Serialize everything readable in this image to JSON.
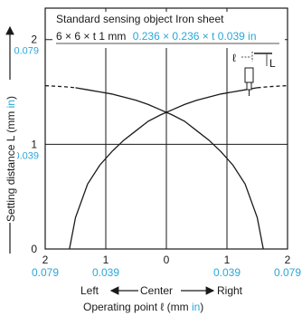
{
  "chart_data": {
    "type": "line",
    "xlabel": "Operating point ℓ (mm in)",
    "xlabel_parts": {
      "main": "Operating point ℓ (mm ",
      "unit_alt": "in",
      "close": ")"
    },
    "ylabel": "Setting distance L (mm in)",
    "ylabel_parts": {
      "main": "Setting distance L (mm ",
      "unit_alt": "in",
      "close": ")"
    },
    "direction_labels": {
      "left": "Left",
      "center": "Center",
      "right": "Right"
    },
    "xlim": [
      -2,
      2
    ],
    "ylim": [
      0,
      2.3
    ],
    "x_ticks": [
      {
        "value": -2,
        "mm": "2",
        "in": "0.079"
      },
      {
        "value": -1,
        "mm": "1",
        "in": "0.039"
      },
      {
        "value": 0,
        "mm": "0",
        "in": ""
      },
      {
        "value": 1,
        "mm": "1",
        "in": "0.039"
      },
      {
        "value": 2,
        "mm": "2",
        "in": "0.079"
      }
    ],
    "y_ticks": [
      {
        "value": 0,
        "mm": "0",
        "in": ""
      },
      {
        "value": 1,
        "mm": "1",
        "in": "0.039"
      },
      {
        "value": 2,
        "mm": "2",
        "in": "0.079"
      }
    ],
    "grid": true,
    "annotation": {
      "line1": "Standard sensing object Iron sheet",
      "line2_mm": "6 × 6 × t 1 mm",
      "line2_in": "0.236 × 0.236 × t 0.039 in",
      "diagram_l": "ℓ",
      "diagram_L": "L"
    },
    "series": [
      {
        "x": [
          -1.6,
          -1.5,
          -1.3,
          -1.1,
          -0.9,
          -0.7,
          -0.5,
          -0.3,
          -0.1,
          0.1,
          0.3,
          0.5,
          0.7,
          0.9,
          1.1,
          1.3,
          1.5,
          1.7,
          2.0
        ],
        "y": [
          0.0,
          0.3,
          0.62,
          0.8,
          0.93,
          1.04,
          1.13,
          1.22,
          1.28,
          1.33,
          1.38,
          1.42,
          1.45,
          1.48,
          1.5,
          1.52,
          1.54,
          1.55,
          1.56
        ],
        "dashed_from_x": 1.6
      },
      {
        "x": [
          -2.0,
          -1.7,
          -1.5,
          -1.3,
          -1.1,
          -0.9,
          -0.7,
          -0.5,
          -0.3,
          -0.1,
          0.1,
          0.3,
          0.5,
          0.7,
          0.9,
          1.1,
          1.3,
          1.5,
          1.6
        ],
        "y": [
          1.56,
          1.55,
          1.54,
          1.52,
          1.5,
          1.48,
          1.45,
          1.42,
          1.38,
          1.33,
          1.28,
          1.22,
          1.13,
          1.04,
          0.93,
          0.8,
          0.62,
          0.3,
          0.0
        ],
        "dashed_to_x": -1.6
      }
    ]
  }
}
